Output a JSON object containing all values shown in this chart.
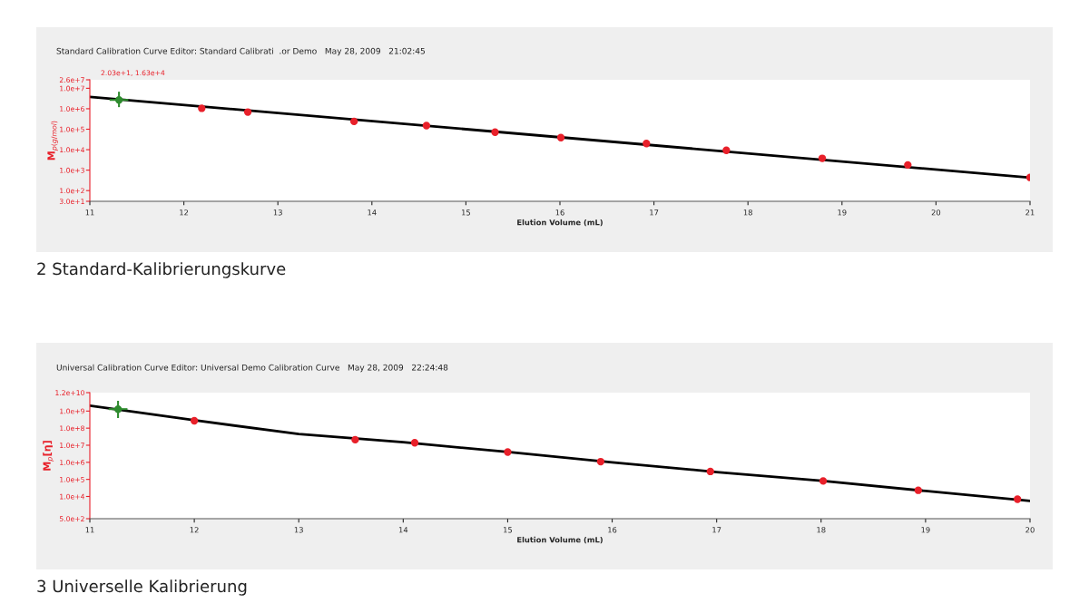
{
  "chart_data": [
    {
      "type": "scatter",
      "title": "Standard Calibration Curve Editor: Standard Calibrati  .or Demo   May 28, 2009   21:02:45",
      "xlabel": "Elution Volume (mL)",
      "ylabel": "M$_{p(g/mol)}$",
      "log": "y",
      "xlim": [
        11,
        21
      ],
      "xticks": [
        11,
        12,
        13,
        14,
        15,
        16,
        17,
        18,
        19,
        20,
        21
      ],
      "ylim": [
        30,
        26000000
      ],
      "yticks": [
        {
          "value": 30,
          "label": "3.0e+1"
        },
        {
          "value": 100,
          "label": "1.0e+2"
        },
        {
          "value": 1000,
          "label": "1.0e+3"
        },
        {
          "value": 10000,
          "label": "1.0e+4"
        },
        {
          "value": 100000,
          "label": "1.0e+5"
        },
        {
          "value": 1000000,
          "label": "1.0e+6"
        },
        {
          "value": 10000000,
          "label": "1.0e+7"
        },
        {
          "value": 26000000,
          "label": "2.6e+7"
        }
      ],
      "grid": false,
      "legend": false,
      "series": [
        {
          "type": "line",
          "color": "#000000",
          "x": [
            11,
            21
          ],
          "values": [
            3800000,
            430
          ],
          "marker": "none",
          "line_style": "solid"
        },
        {
          "color": "#2e8b2e",
          "x": [
            11.31
          ],
          "values": [
            2700000
          ],
          "errors": [
            [
              1200000,
              6800000
            ]
          ],
          "xerrors": [
            0.1
          ],
          "marker": "circle"
        },
        {
          "color": "#e8202a",
          "x": [
            12.19,
            12.68,
            13.81,
            14.58,
            15.31,
            16.01,
            16.92,
            17.77,
            18.79,
            19.7,
            21.0
          ],
          "values": [
            1050000,
            690000,
            240000,
            150000,
            72000,
            39000,
            20000,
            9300,
            3800,
            1800,
            440
          ],
          "marker": "circle"
        }
      ],
      "annotations": [
        "2.03e+1, 1.63e+4",
        "2 Standard-Kalibrierungskurve"
      ]
    },
    {
      "type": "scatter",
      "title": "Universal Calibration Curve Editor: Universal Demo Calibration Curve   May 28, 2009   22:24:48",
      "xlabel": "Elution Volume (mL)",
      "ylabel": "M$_{p}$[η]",
      "log": "y",
      "xlim": [
        11,
        20
      ],
      "xticks": [
        11,
        12,
        13,
        14,
        15,
        16,
        17,
        18,
        19,
        20
      ],
      "ylim": [
        500,
        12000000000
      ],
      "yticks": [
        {
          "value": 500,
          "label": "5.0e+2"
        },
        {
          "value": 10000,
          "label": "1.0e+4"
        },
        {
          "value": 100000,
          "label": "1.0e+5"
        },
        {
          "value": 1000000,
          "label": "1.0e+6"
        },
        {
          "value": 10000000,
          "label": "1.0e+7"
        },
        {
          "value": 100000000,
          "label": "1.0e+8"
        },
        {
          "value": 1000000000,
          "label": "1.0e+9"
        },
        {
          "value": 12000000000,
          "label": "1.2e+10"
        }
      ],
      "grid": false,
      "legend": false,
      "series": [
        {
          "type": "line",
          "color": "#000000",
          "x": [
            11,
            12,
            13,
            14,
            15,
            16,
            17,
            18,
            19,
            20
          ],
          "values": [
            2100000000,
            290000000,
            45000000,
            15000000,
            4000000,
            1000000,
            270000,
            83000,
            21000,
            5500
          ],
          "marker": "none",
          "line_style": "solid"
        },
        {
          "color": "#2e8b2e",
          "x": [
            11.27
          ],
          "values": [
            1300000000
          ],
          "errors": [
            [
              390000000,
              4000000000
            ]
          ],
          "xerrors": [
            0.09
          ],
          "marker": "circle"
        },
        {
          "color": "#e8202a",
          "x": [
            12.0,
            13.54,
            14.11,
            15.0,
            15.89,
            16.94,
            18.02,
            18.93,
            19.88
          ],
          "values": [
            270000000,
            21000000,
            14000000,
            4000000,
            1100000,
            290000,
            81000,
            23000,
            6900
          ],
          "marker": "circle"
        }
      ],
      "annotations": [
        "3 Universelle Kalibrierung"
      ]
    }
  ]
}
